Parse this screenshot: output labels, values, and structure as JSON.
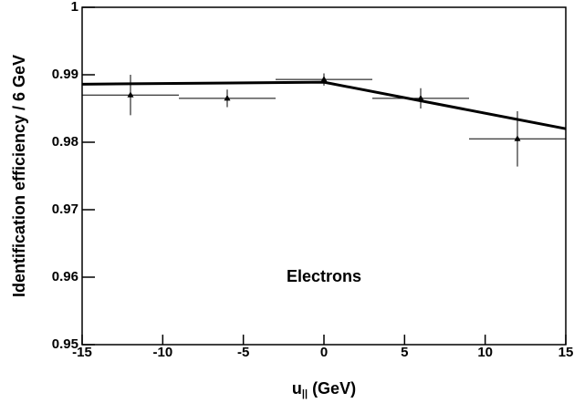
{
  "chart_data": {
    "type": "scatter",
    "x_label": {
      "base": "u",
      "sub": "||",
      "unit": "(GeV)"
    },
    "y_label": "Identification efficiency / 6 GeV",
    "annotation": "Electrons",
    "xlim": [
      -15,
      15
    ],
    "xticks": [
      -15,
      -10,
      -5,
      0,
      5,
      10,
      15
    ],
    "ylim": [
      0.95,
      1
    ],
    "yticks": [
      0.95,
      0.96,
      0.97,
      0.98,
      0.99,
      1
    ],
    "series": [
      {
        "x": [
          -12,
          -6,
          0,
          6,
          12
        ],
        "values": [
          0.987,
          0.9865,
          0.9893,
          0.9865,
          0.9805
        ],
        "yerr": [
          0.003,
          0.0013,
          0.0009,
          0.0015,
          0.0041
        ],
        "xerr": [
          3,
          3,
          3,
          3,
          3
        ],
        "color": "#000000"
      }
    ],
    "fit": {
      "x": [
        -15,
        0,
        15
      ],
      "values": [
        0.9886,
        0.9889,
        0.982
      ],
      "color": "#000000"
    }
  }
}
